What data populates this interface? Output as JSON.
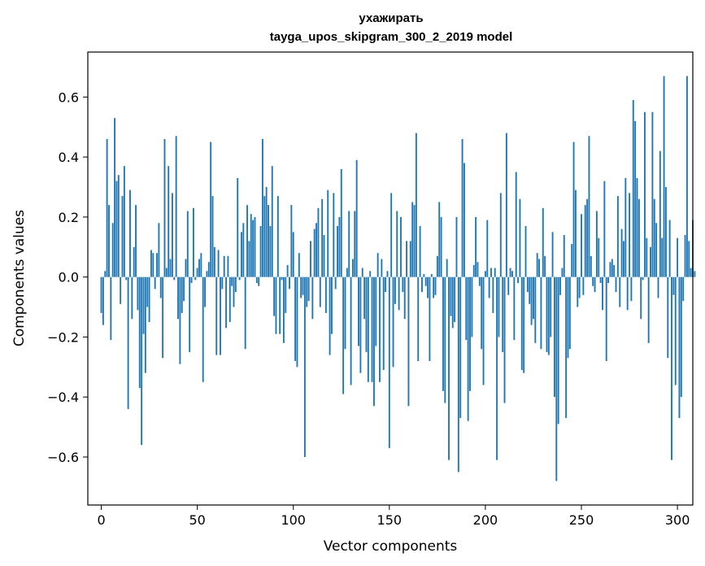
{
  "chart_data": {
    "type": "bar",
    "title": "ухажирать",
    "subtitle": "tayga_upos_skipgram_300_2_2019 model",
    "xlabel": "Vector components",
    "ylabel": "Components values",
    "xlim": [
      -7,
      308
    ],
    "ylim": [
      -0.76,
      0.75
    ],
    "xticks": [
      0,
      50,
      100,
      150,
      200,
      250,
      300
    ],
    "yticks": [
      -0.6,
      -0.4,
      -0.2,
      0.0,
      0.2,
      0.4,
      0.6
    ],
    "ytick_labels": [
      "−0.6",
      "−0.4",
      "−0.2",
      "0.0",
      "0.2",
      "0.4",
      "0.6"
    ],
    "bar_color": "#1f77b4",
    "values": [
      -0.12,
      -0.16,
      0.02,
      0.46,
      0.24,
      -0.21,
      0.18,
      0.53,
      0.32,
      0.34,
      -0.09,
      0.27,
      0.37,
      -0.01,
      -0.44,
      0.29,
      -0.14,
      0.1,
      0.24,
      -0.11,
      -0.37,
      -0.56,
      -0.19,
      -0.32,
      -0.1,
      -0.15,
      0.09,
      0.08,
      -0.04,
      0.08,
      0.18,
      -0.07,
      -0.27,
      0.46,
      0.03,
      0.37,
      0.06,
      0.28,
      -0.01,
      0.47,
      -0.14,
      -0.29,
      -0.12,
      -0.08,
      0.06,
      0.22,
      -0.25,
      -0.02,
      0.23,
      -0.01,
      0.03,
      0.06,
      0.08,
      -0.35,
      -0.1,
      0.02,
      0.05,
      0.45,
      0.27,
      0.1,
      -0.26,
      0.09,
      -0.26,
      -0.04,
      0.07,
      -0.17,
      0.07,
      -0.15,
      -0.03,
      -0.1,
      -0.05,
      0.33,
      -0.01,
      0.15,
      0.18,
      -0.24,
      0.24,
      0.12,
      0.21,
      0.19,
      0.2,
      -0.02,
      -0.03,
      0.17,
      0.46,
      0.27,
      0.3,
      0.24,
      0.17,
      0.37,
      -0.13,
      -0.19,
      0.27,
      -0.19,
      -0.01,
      -0.22,
      -0.12,
      0.04,
      -0.04,
      0.24,
      0.15,
      -0.28,
      -0.3,
      0.08,
      -0.07,
      -0.06,
      -0.6,
      -0.1,
      -0.08,
      0.12,
      -0.14,
      0.16,
      0.18,
      0.23,
      -0.1,
      0.26,
      0.14,
      -0.12,
      0.29,
      -0.26,
      -0.19,
      0.28,
      -0.04,
      0.17,
      0.2,
      0.36,
      -0.39,
      -0.24,
      0.03,
      0.22,
      -0.36,
      0.06,
      0.22,
      0.39,
      -0.23,
      -0.32,
      0.03,
      -0.14,
      -0.25,
      -0.35,
      0.02,
      -0.35,
      -0.43,
      -0.23,
      0.08,
      -0.35,
      0.06,
      -0.31,
      -0.05,
      0.02,
      -0.57,
      0.28,
      -0.3,
      -0.09,
      0.22,
      -0.11,
      0.2,
      -0.05,
      -0.14,
      0.12,
      -0.43,
      0.12,
      0.25,
      0.24,
      0.48,
      -0.28,
      0.17,
      -0.05,
      0.01,
      -0.03,
      -0.07,
      -0.28,
      0.01,
      -0.07,
      -0.06,
      0.07,
      0.25,
      0.2,
      -0.38,
      -0.42,
      0.06,
      -0.61,
      -0.13,
      -0.17,
      -0.15,
      0.2,
      -0.65,
      -0.47,
      0.46,
      0.38,
      -0.21,
      -0.48,
      -0.38,
      -0.2,
      0.04,
      0.2,
      0.05,
      -0.03,
      -0.24,
      -0.36,
      0.02,
      0.19,
      -0.07,
      0.03,
      -0.12,
      0.03,
      -0.61,
      -0.2,
      0.28,
      -0.25,
      -0.42,
      0.48,
      -0.06,
      0.03,
      0.02,
      -0.21,
      0.35,
      -0.02,
      0.26,
      -0.31,
      -0.32,
      0.17,
      -0.05,
      -0.09,
      -0.16,
      -0.14,
      -0.22,
      0.08,
      0.06,
      -0.24,
      0.23,
      0.07,
      -0.25,
      -0.26,
      -0.2,
      0.15,
      -0.4,
      -0.68,
      -0.49,
      -0.06,
      0.03,
      0.14,
      -0.47,
      -0.27,
      -0.24,
      0.11,
      0.45,
      0.29,
      -0.1,
      -0.07,
      0.21,
      -0.06,
      0.24,
      0.26,
      0.47,
      0.07,
      -0.03,
      -0.05,
      0.22,
      0.13,
      -0.02,
      -0.11,
      0.32,
      -0.28,
      -0.02,
      0.05,
      0.06,
      0.04,
      -0.05,
      0.27,
      -0.1,
      0.16,
      0.12,
      0.33,
      -0.11,
      0.28,
      -0.08,
      0.59,
      0.52,
      0.33,
      0.26,
      -0.14,
      -0.01,
      0.55,
      0.13,
      -0.22,
      0.1,
      0.55,
      0.26,
      0.18,
      -0.07,
      0.42,
      0.13,
      0.67,
      0.3,
      -0.27,
      0.19,
      -0.61,
      -0.06,
      -0.36,
      0.13,
      -0.47,
      -0.4,
      -0.08,
      0.14,
      0.67,
      0.12,
      0.03,
      0.19,
      0.02
    ]
  }
}
